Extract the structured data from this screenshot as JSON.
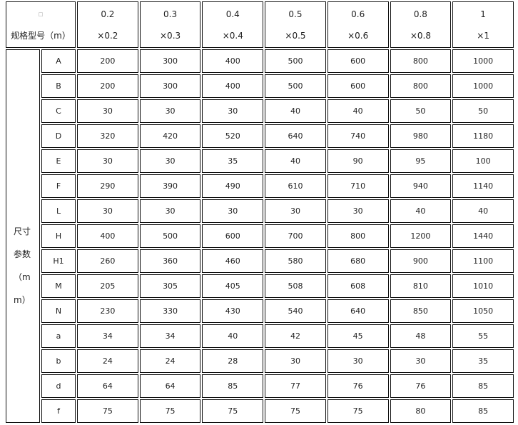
{
  "header": {
    "marker": "□",
    "spec_label": "规格型号（m）",
    "columns": [
      {
        "top": "0.2",
        "bottom": "×0.2"
      },
      {
        "top": "0.3",
        "bottom": "×0.3"
      },
      {
        "top": "0.4",
        "bottom": "×0.4"
      },
      {
        "top": "0.5",
        "bottom": "×0.5"
      },
      {
        "top": "0.6",
        "bottom": "×0.6"
      },
      {
        "top": "0.8",
        "bottom": "×0.8"
      },
      {
        "top": "1",
        "bottom": "×1"
      }
    ]
  },
  "side_label": [
    "尺寸",
    "参数",
    "（m",
    "m）"
  ],
  "rows": [
    {
      "param": "A",
      "values": [
        "200",
        "300",
        "400",
        "500",
        "600",
        "800",
        "1000"
      ]
    },
    {
      "param": "B",
      "values": [
        "200",
        "300",
        "400",
        "500",
        "600",
        "800",
        "1000"
      ]
    },
    {
      "param": "C",
      "values": [
        "30",
        "30",
        "30",
        "40",
        "40",
        "50",
        "50"
      ]
    },
    {
      "param": "D",
      "values": [
        "320",
        "420",
        "520",
        "640",
        "740",
        "980",
        "1180"
      ]
    },
    {
      "param": "E",
      "values": [
        "30",
        "30",
        "35",
        "40",
        "90",
        "95",
        "100"
      ]
    },
    {
      "param": "F",
      "values": [
        "290",
        "390",
        "490",
        "610",
        "710",
        "940",
        "1140"
      ]
    },
    {
      "param": "L",
      "values": [
        "30",
        "30",
        "30",
        "30",
        "30",
        "40",
        "40"
      ]
    },
    {
      "param": "H",
      "values": [
        "400",
        "500",
        "600",
        "700",
        "800",
        "1200",
        "1440"
      ]
    },
    {
      "param": "H1",
      "values": [
        "260",
        "360",
        "460",
        "580",
        "680",
        "900",
        "1100"
      ]
    },
    {
      "param": "M",
      "values": [
        "205",
        "305",
        "405",
        "508",
        "608",
        "810",
        "1010"
      ]
    },
    {
      "param": "N",
      "values": [
        "230",
        "330",
        "430",
        "540",
        "640",
        "850",
        "1050"
      ]
    },
    {
      "param": "a",
      "values": [
        "34",
        "34",
        "40",
        "42",
        "45",
        "48",
        "55"
      ]
    },
    {
      "param": "b",
      "values": [
        "24",
        "24",
        "28",
        "30",
        "30",
        "30",
        "35"
      ]
    },
    {
      "param": "d",
      "values": [
        "64",
        "64",
        "85",
        "77",
        "76",
        "76",
        "85"
      ]
    },
    {
      "param": "f",
      "values": [
        "75",
        "75",
        "75",
        "75",
        "75",
        "80",
        "85"
      ]
    }
  ]
}
